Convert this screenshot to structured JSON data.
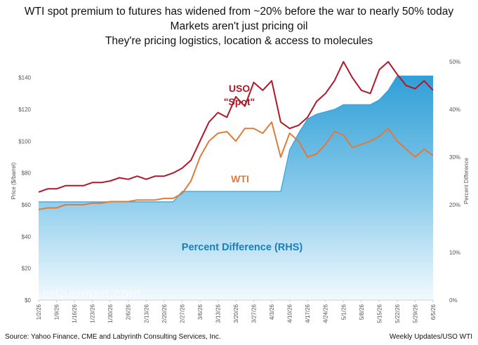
{
  "title_lines": [
    "WTI spot premium to futures has widened from ~20% before the war to nearly 50% today",
    "Markets aren't just pricing oil",
    "They're pricing logistics, location & access to molecules"
  ],
  "footer": {
    "source": "Source: Yahoo Finance, CME and Labyrinth Consulting Services, Inc.",
    "credit": "Weekly Updates/USO WTI"
  },
  "watermark": "artberman.com",
  "colors": {
    "uso": "#b0182a",
    "wti": "#e07b39",
    "pct": "#33a3d9",
    "pct_label": "#1a7fb8",
    "axis": "#cfcfcf"
  },
  "chart_data": {
    "type": "line",
    "ylabel": "Price ($/barrel)",
    "y2label": "Percent Difference",
    "ylim": [
      0,
      150
    ],
    "y2lim": [
      0,
      0.5
    ],
    "yticks": [
      "$0",
      "$20",
      "$40",
      "$60",
      "$80",
      "$100",
      "$120",
      "$140"
    ],
    "y2ticks": [
      "0%",
      "10%",
      "20%",
      "30%",
      "40%",
      "50%"
    ],
    "x": [
      "1/2/26",
      "1/5/26",
      "1/9/26",
      "1/12/26",
      "1/16/26",
      "1/20/26",
      "1/23/26",
      "1/27/26",
      "1/30/26",
      "2/3/26",
      "2/6/26",
      "2/10/26",
      "2/13/26",
      "2/17/26",
      "2/20/26",
      "2/24/26",
      "2/27/26",
      "3/2/26",
      "3/6/26",
      "3/10/26",
      "3/13/26",
      "3/17/26",
      "3/20/26",
      "3/24/26",
      "3/27/26",
      "3/31/26",
      "4/3/26",
      "4/7/26",
      "4/10/26",
      "4/14/26",
      "4/17/26",
      "4/21/26",
      "4/24/26",
      "4/28/26",
      "5/1/26",
      "5/5/26",
      "5/8/26",
      "5/12/26",
      "5/15/26",
      "5/19/26",
      "5/22/26",
      "5/26/26",
      "5/29/26",
      "6/2/26",
      "6/5/26"
    ],
    "xticks": [
      "1/2/26",
      "1/9/26",
      "1/16/26",
      "1/23/26",
      "1/30/26",
      "2/6/26",
      "2/13/26",
      "2/20/26",
      "2/27/26",
      "3/6/26",
      "3/13/26",
      "3/20/26",
      "3/27/26",
      "4/3/26",
      "4/10/26",
      "4/17/26",
      "4/24/26",
      "5/1/26",
      "5/8/26",
      "5/15/26",
      "5/22/26",
      "5/29/26",
      "6/5/26"
    ],
    "series": [
      {
        "name": "USO\n\"Spot\"",
        "axis": "left",
        "values": [
          68,
          70,
          70,
          72,
          72,
          72,
          74,
          74,
          75,
          77,
          76,
          78,
          76,
          78,
          78,
          80,
          83,
          88,
          100,
          112,
          118,
          115,
          128,
          122,
          137,
          132,
          138,
          112,
          108,
          110,
          115,
          125,
          130,
          138,
          150,
          140,
          132,
          130,
          145,
          150,
          142,
          135,
          133,
          138,
          132
        ]
      },
      {
        "name": "WTI",
        "axis": "left",
        "values": [
          57,
          58,
          58,
          60,
          60,
          60,
          61,
          61,
          62,
          62,
          62,
          63,
          63,
          63,
          64,
          64,
          67,
          75,
          90,
          100,
          105,
          106,
          100,
          108,
          108,
          105,
          112,
          90,
          105,
          100,
          90,
          92,
          98,
          106,
          104,
          96,
          98,
          100,
          103,
          108,
          100,
          95,
          90,
          95,
          91
        ]
      },
      {
        "name": "Percent Difference (RHS)",
        "axis": "right",
        "values": [
          0.206,
          0.206,
          0.206,
          0.206,
          0.206,
          0.206,
          0.206,
          0.206,
          0.206,
          0.206,
          0.206,
          0.206,
          0.206,
          0.206,
          0.206,
          0.206,
          0.228,
          0.228,
          0.228,
          0.228,
          0.228,
          0.228,
          0.228,
          0.228,
          0.228,
          0.228,
          0.228,
          0.228,
          0.315,
          0.35,
          0.38,
          0.39,
          0.395,
          0.4,
          0.41,
          0.41,
          0.41,
          0.41,
          0.42,
          0.44,
          0.47,
          0.47,
          0.47,
          0.47,
          0.47
        ]
      }
    ],
    "annotations": [
      "USO",
      "\"Spot\"",
      "WTI",
      "Percent Difference (RHS)"
    ]
  }
}
